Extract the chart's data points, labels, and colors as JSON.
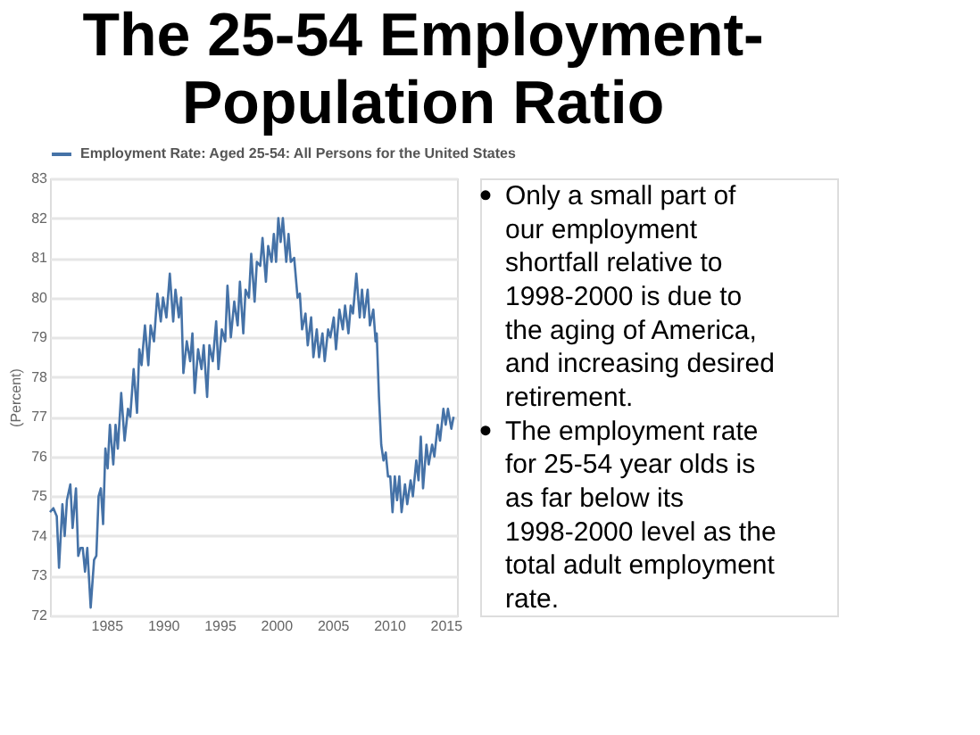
{
  "chart_data": {
    "type": "line",
    "title": "The 25-54 Employment-Population Ratio",
    "ylabel": "(Percent)",
    "x": [
      1980.0,
      1980.3,
      1980.6,
      1980.8,
      1981.1,
      1981.3,
      1981.5,
      1981.8,
      1982.0,
      1982.3,
      1982.5,
      1982.7,
      1982.9,
      1983.1,
      1983.3,
      1983.6,
      1983.9,
      1984.1,
      1984.3,
      1984.5,
      1984.7,
      1984.9,
      1985.1,
      1985.3,
      1985.6,
      1985.8,
      1986.0,
      1986.3,
      1986.6,
      1986.9,
      1987.1,
      1987.4,
      1987.7,
      1987.9,
      1988.1,
      1988.4,
      1988.7,
      1988.9,
      1989.2,
      1989.5,
      1989.8,
      1990.0,
      1990.3,
      1990.6,
      1990.9,
      1991.1,
      1991.4,
      1991.6,
      1991.8,
      1992.1,
      1992.4,
      1992.6,
      1992.8,
      1993.1,
      1993.4,
      1993.6,
      1993.9,
      1994.1,
      1994.4,
      1994.7,
      1994.9,
      1995.2,
      1995.5,
      1995.7,
      1996.0,
      1996.3,
      1996.6,
      1996.8,
      1997.1,
      1997.3,
      1997.6,
      1997.8,
      1998.1,
      1998.3,
      1998.6,
      1998.8,
      1999.1,
      1999.3,
      1999.6,
      1999.8,
      2000.0,
      2000.2,
      2000.4,
      2000.6,
      2000.9,
      2001.1,
      2001.3,
      2001.6,
      2001.9,
      2002.1,
      2002.3,
      2002.6,
      2002.8,
      2003.1,
      2003.3,
      2003.6,
      2003.8,
      2004.1,
      2004.3,
      2004.6,
      2004.8,
      2005.1,
      2005.3,
      2005.6,
      2005.9,
      2006.1,
      2006.4,
      2006.6,
      2006.8,
      2007.1,
      2007.4,
      2007.6,
      2007.8,
      2008.1,
      2008.3,
      2008.6,
      2008.8,
      2008.9,
      2009.1,
      2009.3,
      2009.5,
      2009.7,
      2009.9,
      2010.1,
      2010.3,
      2010.5,
      2010.7,
      2010.9,
      2011.1,
      2011.4,
      2011.6,
      2011.9,
      2012.1,
      2012.4,
      2012.6,
      2012.8,
      2013.0,
      2013.3,
      2013.5,
      2013.8,
      2014.0,
      2014.3,
      2014.5,
      2014.8,
      2015.0,
      2015.2,
      2015.5,
      2015.7
    ],
    "series": [
      {
        "name": "Employment Rate: Aged 25-54: All Persons for the United States",
        "color": "#4572a7",
        "values": [
          74.6,
          74.7,
          74.5,
          73.2,
          74.8,
          74.0,
          74.9,
          75.3,
          74.2,
          75.2,
          73.5,
          73.7,
          73.7,
          73.1,
          73.7,
          72.2,
          73.4,
          73.5,
          75.0,
          75.2,
          74.3,
          76.2,
          75.7,
          76.8,
          75.8,
          76.8,
          76.2,
          77.6,
          76.4,
          77.2,
          77.0,
          78.2,
          77.1,
          78.7,
          78.3,
          79.3,
          78.3,
          79.3,
          78.9,
          80.1,
          79.4,
          80.0,
          79.5,
          80.6,
          79.4,
          80.2,
          79.5,
          80.0,
          78.1,
          78.9,
          78.4,
          79.1,
          77.6,
          78.7,
          78.2,
          78.8,
          77.5,
          78.8,
          78.4,
          79.4,
          78.2,
          79.2,
          78.9,
          80.3,
          79.0,
          79.9,
          79.3,
          80.4,
          79.1,
          80.2,
          80.0,
          81.1,
          79.9,
          80.9,
          80.8,
          81.5,
          80.4,
          81.3,
          80.9,
          81.6,
          80.9,
          82.0,
          81.4,
          82.0,
          80.9,
          81.6,
          80.9,
          81.0,
          80.0,
          80.1,
          79.2,
          79.6,
          78.8,
          79.5,
          78.5,
          79.2,
          78.5,
          79.1,
          78.4,
          79.2,
          79.0,
          79.5,
          78.7,
          79.7,
          79.2,
          79.8,
          79.1,
          79.8,
          79.6,
          80.6,
          79.5,
          80.2,
          79.5,
          80.2,
          79.3,
          79.7,
          78.9,
          79.1,
          77.5,
          76.3,
          75.9,
          76.1,
          75.5,
          75.5,
          74.6,
          75.5,
          74.9,
          75.5,
          74.6,
          75.3,
          74.8,
          75.4,
          75.0,
          75.9,
          75.4,
          76.5,
          75.2,
          76.3,
          75.8,
          76.3,
          76.0,
          76.8,
          76.4,
          77.2,
          76.8,
          77.2,
          76.7,
          77.0
        ]
      }
    ],
    "xlim": [
      1980,
      2016
    ],
    "xticks": [
      1985,
      1990,
      1995,
      2000,
      2005,
      2010,
      2015
    ],
    "ylim": [
      72,
      83
    ],
    "yticks": [
      72,
      73,
      74,
      75,
      76,
      77,
      78,
      79,
      80,
      81,
      82,
      83
    ],
    "grid": "y",
    "legend": "top",
    "annotations": [
      "Only a small part of our employment shortfall relative to 1998-2000 is due to the aging of America, and increasing desired retirement.",
      "The employment rate for 25-54 year olds is as far below its 1998-2000 level as the total adult employment rate."
    ]
  }
}
